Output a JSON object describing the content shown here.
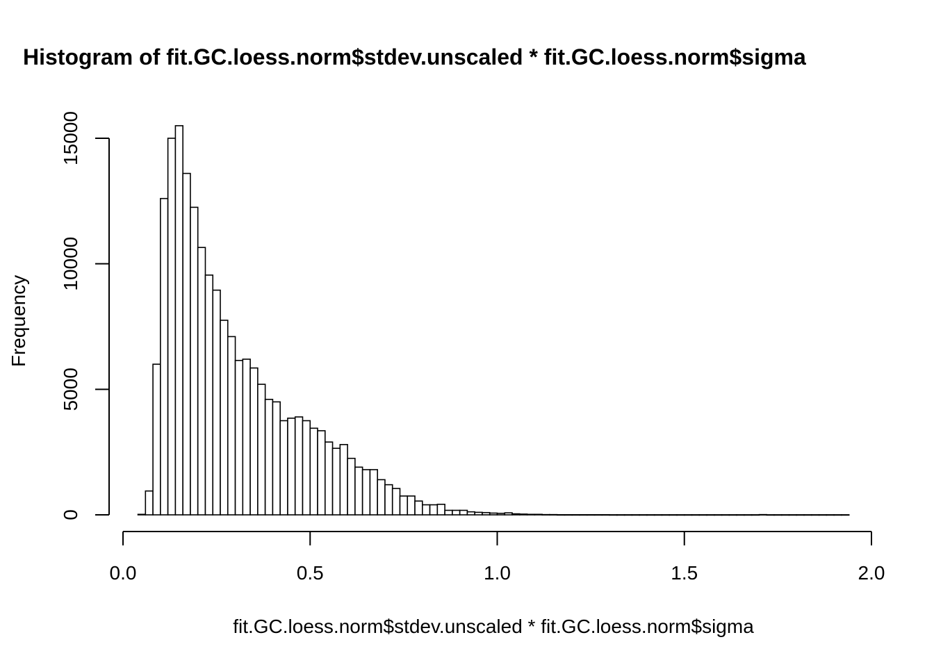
{
  "chart_data": {
    "type": "bar",
    "title": "Histogram of fit.GC.loess.norm$stdev.unscaled * fit.GC.loess.norm$sigma",
    "xlabel": "fit.GC.loess.norm$stdev.unscaled * fit.GC.loess.norm$sigma",
    "ylabel": "Frequency",
    "bin_width": 0.02,
    "bin_start": 0.04,
    "values": [
      20,
      950,
      6000,
      12600,
      15000,
      15500,
      13600,
      12250,
      10650,
      9550,
      8950,
      7750,
      7100,
      6150,
      6200,
      5850,
      5200,
      4600,
      4500,
      3750,
      3850,
      3900,
      3750,
      3450,
      3350,
      2900,
      2650,
      2800,
      2250,
      1900,
      1800,
      1800,
      1400,
      1200,
      1050,
      750,
      750,
      550,
      400,
      400,
      420,
      180,
      180,
      180,
      120,
      100,
      90,
      70,
      60,
      80,
      40,
      30,
      20,
      20,
      10,
      10,
      5,
      5,
      5,
      5,
      5,
      5,
      5,
      3,
      3,
      3,
      3,
      3,
      3,
      3,
      3,
      3,
      3,
      3,
      3,
      3,
      3,
      3,
      3,
      3,
      3,
      3,
      3,
      10,
      3,
      3,
      3,
      3,
      3,
      3,
      3,
      3,
      3,
      3,
      3
    ],
    "xlim": [
      0,
      2
    ],
    "ylim": [
      0,
      16000
    ],
    "x_ticks": [
      0.0,
      0.5,
      1.0,
      1.5,
      2.0
    ],
    "x_tick_labels": [
      "0.0",
      "0.5",
      "1.0",
      "1.5",
      "2.0"
    ],
    "y_ticks": [
      0,
      5000,
      10000,
      15000
    ],
    "y_tick_labels": [
      "0",
      "5000",
      "10000",
      "15000"
    ],
    "bar_fill": "#ffffff",
    "bar_stroke": "#000000",
    "grid": false
  }
}
